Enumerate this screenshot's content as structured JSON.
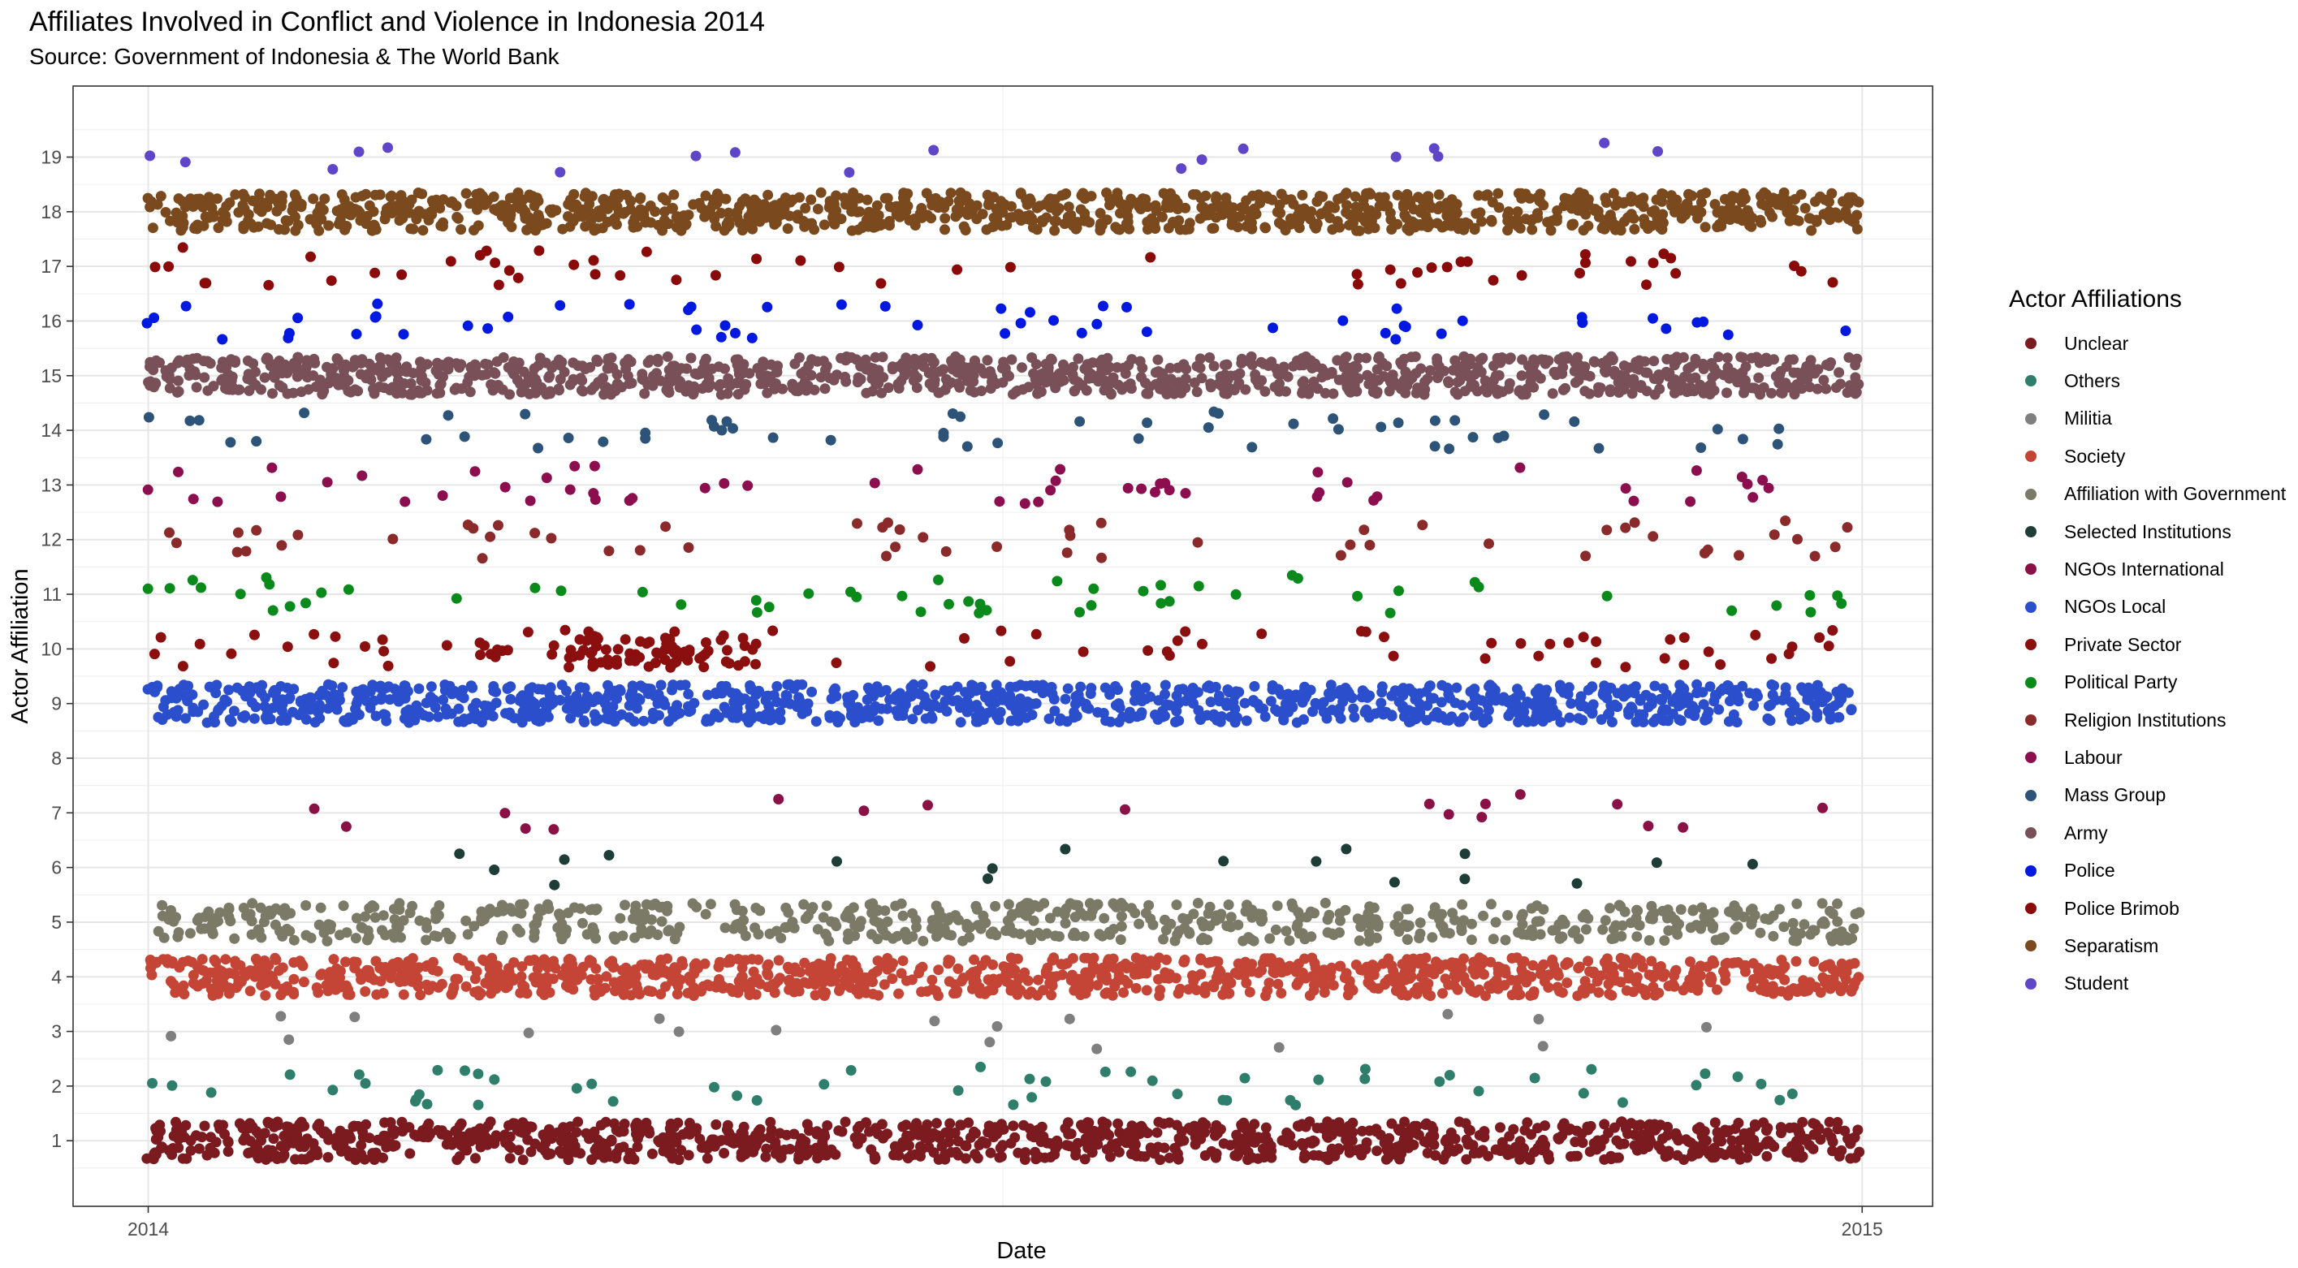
{
  "title": "Affiliates Involved in Conflict and Violence in Indonesia 2014",
  "subtitle": "Source: Government of Indonesia & The World Bank",
  "legend_title": "Actor Affiliations",
  "chart_data": {
    "type": "scatter",
    "title": "Affiliates Involved in Conflict and Violence in Indonesia 2014",
    "subtitle": "Source: Government of Indonesia & The World Bank",
    "xlabel": "Date",
    "ylabel": "Actor Affiliation",
    "x_ticks": [
      "2014",
      "2015"
    ],
    "xlim": [
      "2013-12-16",
      "2015-01-16"
    ],
    "y_ticks": [
      1,
      2,
      3,
      4,
      5,
      6,
      7,
      8,
      9,
      10,
      11,
      12,
      13,
      14,
      15,
      16,
      17,
      18,
      19
    ],
    "ylim": [
      -0.2,
      20.3
    ],
    "jitter": 0.35,
    "grid": true,
    "legend_position": "right",
    "series": [
      {
        "name": "Unclear",
        "value": 1,
        "color": "#7b1a1f",
        "density": "very high"
      },
      {
        "name": "Others",
        "value": 2,
        "color": "#2e7e6b",
        "density": "low"
      },
      {
        "name": "Militia",
        "value": 3,
        "color": "#7f7f7f",
        "density": "very low"
      },
      {
        "name": "Society",
        "value": 4,
        "color": "#c44536",
        "density": "very high"
      },
      {
        "name": "Affiliation with Government",
        "value": 5,
        "color": "#7a7a66",
        "density": "high"
      },
      {
        "name": "Selected Institutions",
        "value": 6,
        "color": "#1d3d36",
        "density": "very low"
      },
      {
        "name": "NGOs International",
        "value": 7,
        "color": "#8a1145",
        "density": "very low"
      },
      {
        "name": "NGOs Local",
        "value": 9,
        "color": "#2b4fcc",
        "density": "very high"
      },
      {
        "name": "Private Sector",
        "value": 10,
        "color": "#8b0f0f",
        "density": "medium"
      },
      {
        "name": "Political Party",
        "value": 11,
        "color": "#0b8a1c",
        "density": "low"
      },
      {
        "name": "Religion Institutions",
        "value": 12,
        "color": "#8b2a2a",
        "density": "low"
      },
      {
        "name": "Labour",
        "value": 13,
        "color": "#8c0e4e",
        "density": "low"
      },
      {
        "name": "Mass Group",
        "value": 14,
        "color": "#2d5478",
        "density": "low"
      },
      {
        "name": "Army",
        "value": 15,
        "color": "#7a5058",
        "density": "very high"
      },
      {
        "name": "Police",
        "value": 16,
        "color": "#0018e0",
        "density": "low"
      },
      {
        "name": "Police Brimob",
        "value": 17,
        "color": "#8a0a0a",
        "density": "low"
      },
      {
        "name": "Separatism",
        "value": 18,
        "color": "#7a4a1e",
        "density": "very high"
      },
      {
        "name": "Student",
        "value": 19,
        "color": "#5f46c8",
        "density": "very low"
      }
    ]
  }
}
